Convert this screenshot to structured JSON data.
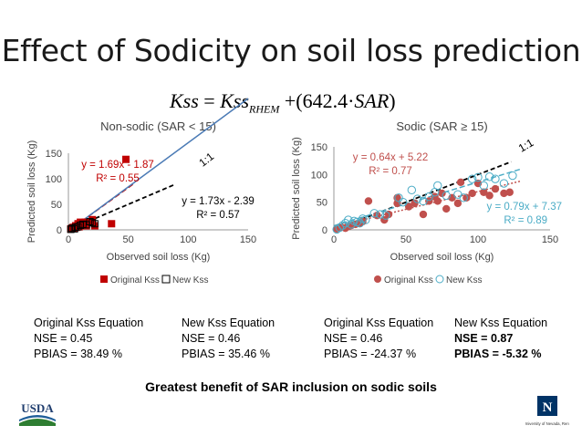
{
  "slide": {
    "title": "Effect of Sodicity on soil loss prediction",
    "formula": {
      "lhs": "Kss",
      "rhs_var": "Kss",
      "rhs_sub": "RHEM",
      "coef": "642.4",
      "sar": "SAR"
    },
    "conclusion": "Greatest benefit of SAR inclusion on sodic soils",
    "logos": {
      "usda": "USDA",
      "university": "University of Nevada, Reno"
    }
  },
  "stats": [
    {
      "line1": "Original Kss Equation",
      "line2": "NSE = 0.45",
      "line3": "PBIAS = 38.49 %",
      "bold": false
    },
    {
      "line1": "New Kss Equation",
      "line2": "NSE = 0.46",
      "line3": "PBIAS = 35.46 %",
      "bold": false
    },
    {
      "line1": "Original Kss Equation",
      "line2": "NSE = 0.46",
      "line3": "PBIAS = -24.37 %",
      "bold": false
    },
    {
      "line1": "New Kss Equation",
      "line2": "NSE = 0.87",
      "line3": "PBIAS = -5.32 %",
      "bold": true
    }
  ],
  "chart_data": [
    {
      "type": "scatter",
      "title": "Non-sodic (SAR < 15)",
      "xlabel": "Observed soil loss (Kg)",
      "ylabel": "Predicted soil loss (Kg)",
      "xlim": [
        0,
        150
      ],
      "ylim": [
        0,
        150
      ],
      "xticks": [
        0,
        50,
        100,
        150
      ],
      "yticks": [
        0,
        50,
        100,
        150
      ],
      "legend_position": "bottom",
      "one_to_one_label": "1:1",
      "series": [
        {
          "name": "Original Kss",
          "marker": "square-filled",
          "color": "#c00000",
          "points": [
            [
              2,
              2
            ],
            [
              3,
              3
            ],
            [
              4,
              5
            ],
            [
              5,
              3
            ],
            [
              6,
              8
            ],
            [
              7,
              5
            ],
            [
              8,
              12
            ],
            [
              9,
              6
            ],
            [
              10,
              15
            ],
            [
              12,
              10
            ],
            [
              14,
              15
            ],
            [
              15,
              8
            ],
            [
              18,
              14
            ],
            [
              20,
              20
            ],
            [
              22,
              8
            ],
            [
              36,
              12
            ],
            [
              48,
              138
            ]
          ],
          "trendline": {
            "slope": 1.69,
            "intercept": -1.87,
            "style": "dashed",
            "color": "#c00000",
            "label": "y = 1.69x - 1.87",
            "r2_label": "R² = 0.55"
          }
        },
        {
          "name": "New Kss",
          "marker": "square-open",
          "color": "#000000",
          "points": [
            [
              2,
              1
            ],
            [
              3,
              3
            ],
            [
              5,
              2
            ],
            [
              6,
              5
            ],
            [
              8,
              6
            ],
            [
              10,
              9
            ],
            [
              12,
              11
            ],
            [
              15,
              10
            ],
            [
              18,
              16
            ],
            [
              20,
              14
            ],
            [
              22,
              12
            ]
          ],
          "trendline": {
            "slope": 1.73,
            "intercept": -2.39,
            "style": "solid",
            "color": "#4a7ab5",
            "label": "y = 1.73x - 2.39",
            "r2_label": "R² = 0.57"
          }
        }
      ]
    },
    {
      "type": "scatter",
      "title": "Sodic (SAR ≥ 15)",
      "xlabel": "Observed soil loss (Kg)",
      "ylabel": "Predicted soil loss (Kg)",
      "xlim": [
        0,
        150
      ],
      "ylim": [
        0,
        150
      ],
      "xticks": [
        0,
        50,
        100,
        150
      ],
      "yticks": [
        0,
        50,
        100,
        150
      ],
      "legend_position": "bottom",
      "one_to_one_label": "1:1",
      "series": [
        {
          "name": "Original Kss",
          "marker": "circle-filled",
          "color": "#c0504d",
          "points": [
            [
              2,
              2
            ],
            [
              5,
              5
            ],
            [
              8,
              3
            ],
            [
              10,
              6
            ],
            [
              12,
              8
            ],
            [
              15,
              10
            ],
            [
              18,
              12
            ],
            [
              20,
              15
            ],
            [
              24,
              52
            ],
            [
              30,
              26
            ],
            [
              35,
              18
            ],
            [
              38,
              28
            ],
            [
              44,
              48
            ],
            [
              44,
              58
            ],
            [
              52,
              42
            ],
            [
              56,
              48
            ],
            [
              62,
              28
            ],
            [
              66,
              52
            ],
            [
              70,
              60
            ],
            [
              72,
              52
            ],
            [
              75,
              66
            ],
            [
              78,
              38
            ],
            [
              82,
              58
            ],
            [
              86,
              48
            ],
            [
              88,
              86
            ],
            [
              92,
              58
            ],
            [
              96,
              66
            ],
            [
              100,
              84
            ],
            [
              104,
              68
            ],
            [
              108,
              62
            ],
            [
              112,
              74
            ],
            [
              118,
              66
            ],
            [
              122,
              68
            ]
          ],
          "trendline": {
            "slope": 0.64,
            "intercept": 5.22,
            "style": "dotted",
            "color": "#c0504d",
            "label": "y = 0.64x + 5.22",
            "r2_label": "R² = 0.77"
          }
        },
        {
          "name": "New Kss",
          "marker": "circle-open",
          "color": "#4bacc6",
          "points": [
            [
              2,
              1
            ],
            [
              4,
              4
            ],
            [
              6,
              8
            ],
            [
              8,
              12
            ],
            [
              10,
              18
            ],
            [
              12,
              10
            ],
            [
              14,
              16
            ],
            [
              16,
              14
            ],
            [
              18,
              12
            ],
            [
              20,
              20
            ],
            [
              22,
              18
            ],
            [
              28,
              30
            ],
            [
              32,
              28
            ],
            [
              36,
              26
            ],
            [
              45,
              58
            ],
            [
              48,
              50
            ],
            [
              54,
              72
            ],
            [
              58,
              56
            ],
            [
              62,
              52
            ],
            [
              66,
              60
            ],
            [
              70,
              68
            ],
            [
              72,
              80
            ],
            [
              78,
              62
            ],
            [
              86,
              64
            ],
            [
              90,
              58
            ],
            [
              96,
              92
            ],
            [
              100,
              95
            ],
            [
              104,
              80
            ],
            [
              108,
              96
            ],
            [
              112,
              92
            ],
            [
              118,
              84
            ],
            [
              124,
              98
            ]
          ],
          "trendline": {
            "slope": 0.79,
            "intercept": 7.37,
            "style": "dashed",
            "color": "#4bacc6",
            "label": "y = 0.79x + 7.37",
            "r2_label": "R² = 0.89"
          }
        }
      ]
    }
  ]
}
